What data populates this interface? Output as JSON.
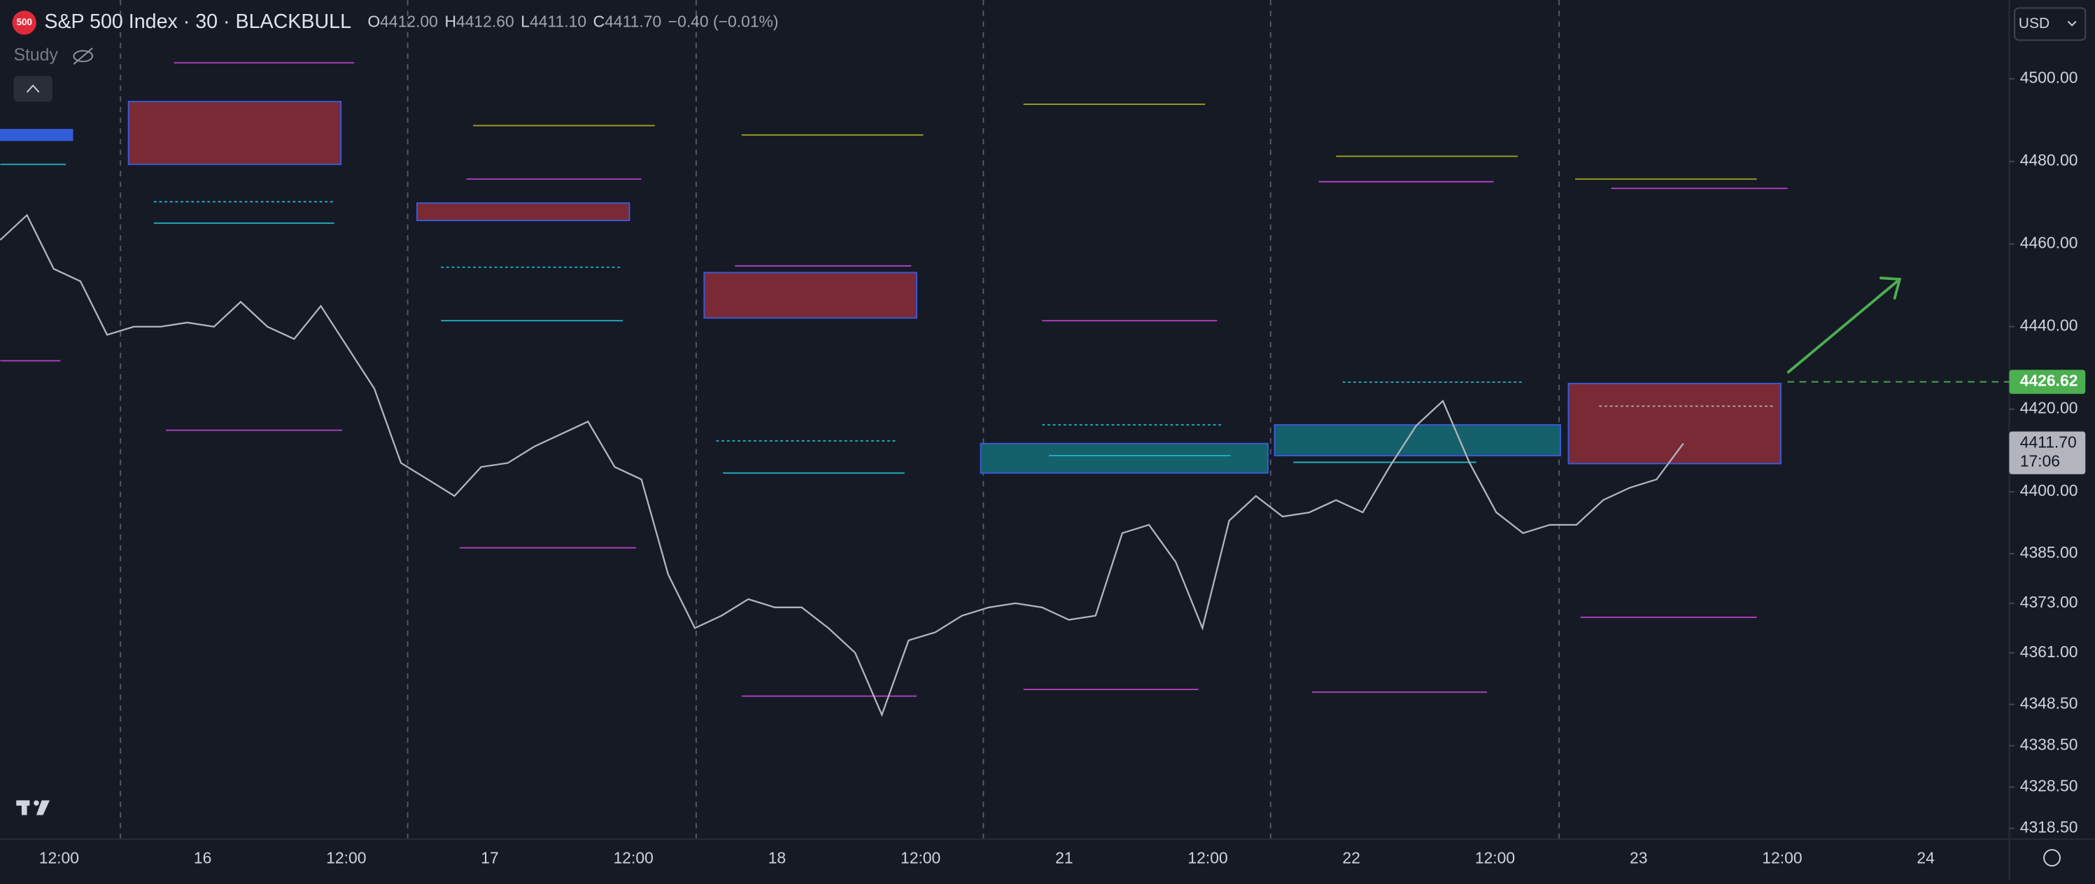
{
  "header": {
    "logo": "500",
    "symbol": "S&P 500 Index · 30 · BLACKBULL",
    "open_label": "O",
    "open": "4412.00",
    "high_label": "H",
    "high": "4412.60",
    "low_label": "L",
    "low": "4411.10",
    "close_label": "C",
    "close": "4411.70",
    "change": "−0.40 (−0.01%)",
    "study": "Study",
    "currency": "USD"
  },
  "chart": {
    "ylim": [
      4315.9,
      4519.1
    ],
    "yticks": [
      {
        "value": 4500,
        "label": "4500.00"
      },
      {
        "value": 4480,
        "label": "4480.00"
      },
      {
        "value": 4460,
        "label": "4460.00"
      },
      {
        "value": 4440,
        "label": "4440.00"
      },
      {
        "value": 4420,
        "label": "4420.00"
      },
      {
        "value": 4400,
        "label": "4400.00"
      },
      {
        "value": 4385,
        "label": "4385.00"
      },
      {
        "value": 4373,
        "label": "4373.00"
      },
      {
        "value": 4361,
        "label": "4361.00"
      },
      {
        "value": 4348.5,
        "label": "4348.50"
      },
      {
        "value": 4338.5,
        "label": "4338.50"
      },
      {
        "value": 4328.5,
        "label": "4328.50"
      },
      {
        "value": 4318.5,
        "label": "4318.50"
      }
    ],
    "x_labels": [
      "12:00",
      "16",
      "12:00",
      "17",
      "12:00",
      "18",
      "12:00",
      "21",
      "12:00",
      "22",
      "12:00",
      "23",
      "12:00",
      "24"
    ],
    "closes": [
      4461,
      4467,
      4454,
      4451,
      4438,
      4440,
      4440,
      4441,
      4440,
      4446,
      4440,
      4437,
      4445,
      4435,
      4425,
      4407,
      4403,
      4399,
      4406,
      4407,
      4411,
      4414,
      4417,
      4406,
      4403,
      4380,
      4367,
      4370,
      4374,
      4372,
      4372,
      4367,
      4361,
      4346,
      4364,
      4366,
      4370,
      4372,
      4373,
      4372,
      4369,
      4370,
      4390,
      4392,
      4383,
      4367,
      4393,
      4399,
      4394,
      4395,
      4398,
      4395,
      4406,
      4416,
      4422,
      4407,
      4395,
      4390,
      4392,
      4392,
      4398,
      4401,
      4403,
      4411.7
    ],
    "target": {
      "value": 4426.62,
      "label": "4426.62"
    },
    "last": {
      "value": 4411.7,
      "label": "4411.70",
      "countdown": "17:06"
    }
  }
}
